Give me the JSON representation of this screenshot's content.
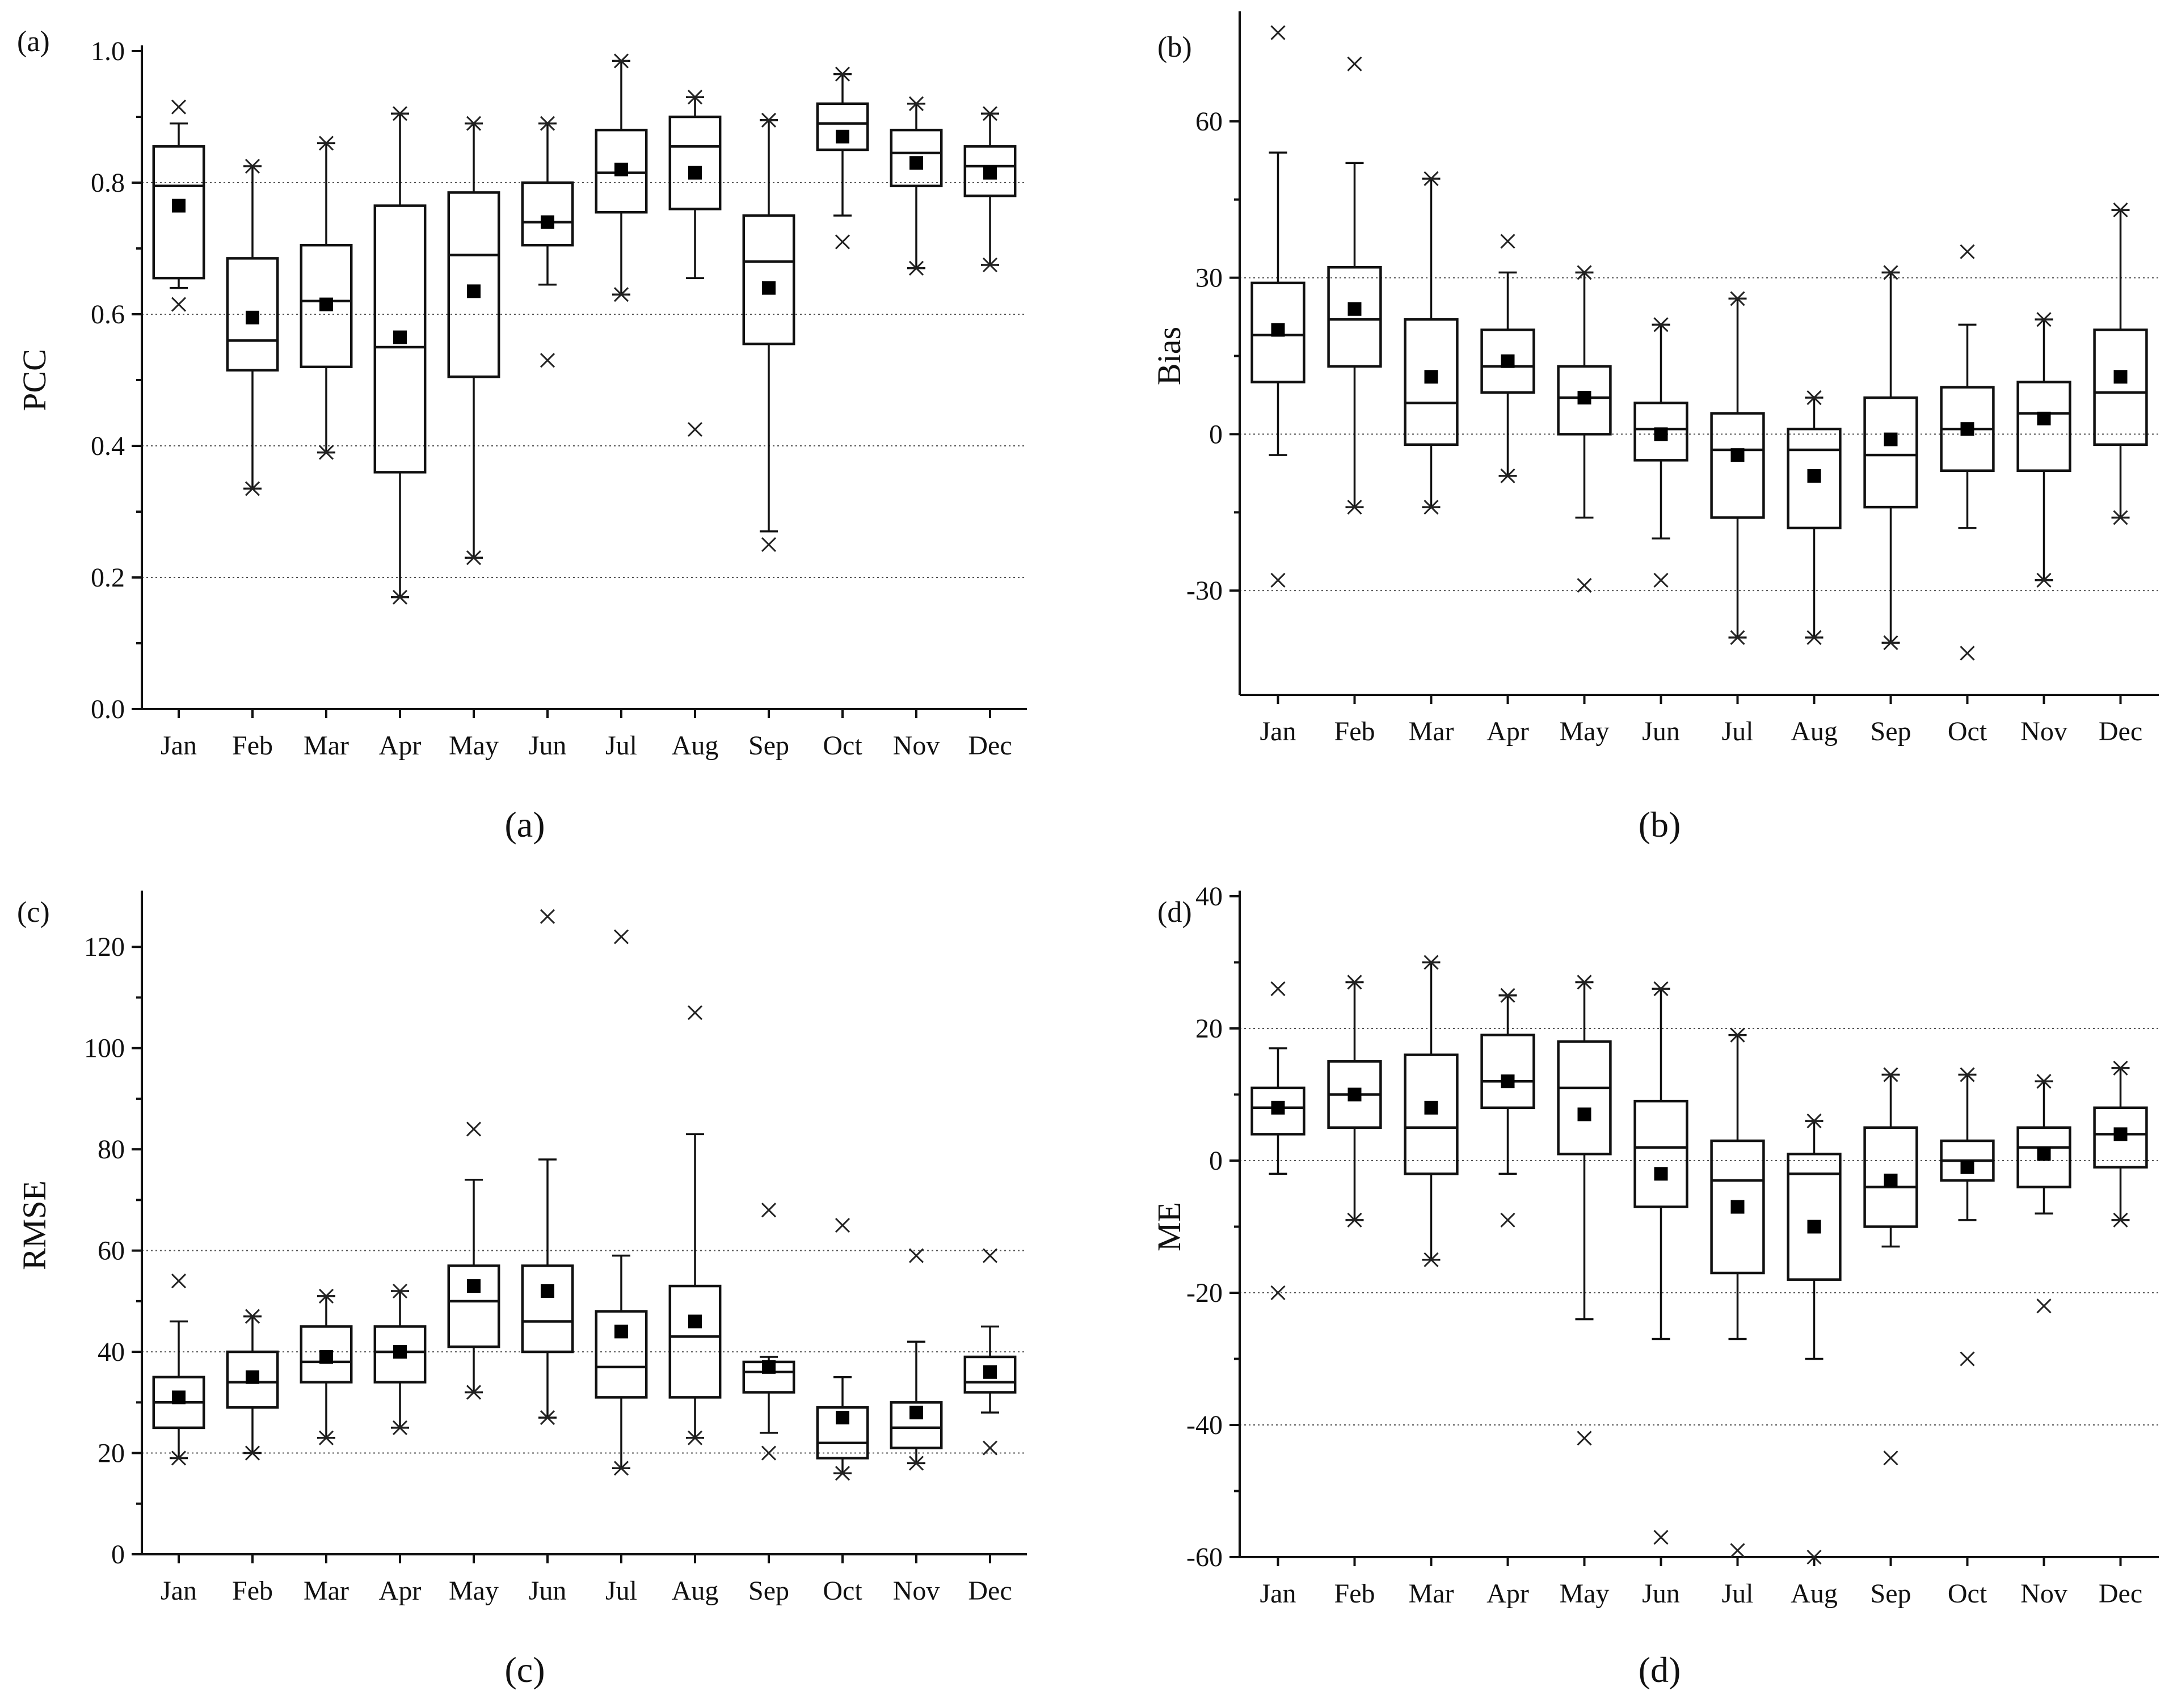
{
  "chart_data": [
    {
      "panel": "(a)",
      "caption": "(a)",
      "type": "box",
      "ylabel": "PCC",
      "xlabel": "",
      "ylim": [
        0,
        1.0
      ],
      "yticks": [
        0.0,
        0.2,
        0.4,
        0.6,
        0.8,
        1.0
      ],
      "ytick_labels": [
        "0.0",
        "0.2",
        "0.4",
        "0.6",
        "0.8",
        "1.0"
      ],
      "gridlines": [
        0.2,
        0.4,
        0.6,
        0.8
      ],
      "categories": [
        "Jan",
        "Feb",
        "Mar",
        "Apr",
        "May",
        "Jun",
        "Jul",
        "Aug",
        "Sep",
        "Oct",
        "Nov",
        "Dec"
      ],
      "boxes": [
        {
          "wlo": 0.64,
          "q1": 0.655,
          "median": 0.795,
          "q3": 0.855,
          "whi": 0.89,
          "mean": 0.765,
          "lo_extreme": 0.615,
          "hi_extreme": 0.915
        },
        {
          "wlo": 0.335,
          "q1": 0.515,
          "median": 0.56,
          "q3": 0.685,
          "whi": 0.825,
          "mean": 0.595,
          "lo_extreme": 0.335,
          "hi_extreme": 0.825
        },
        {
          "wlo": 0.39,
          "q1": 0.52,
          "median": 0.62,
          "q3": 0.705,
          "whi": 0.86,
          "mean": 0.615,
          "lo_extreme": 0.39,
          "hi_extreme": 0.86
        },
        {
          "wlo": 0.17,
          "q1": 0.36,
          "median": 0.55,
          "q3": 0.765,
          "whi": 0.905,
          "mean": 0.565,
          "lo_extreme": 0.17,
          "hi_extreme": 0.905
        },
        {
          "wlo": 0.23,
          "q1": 0.505,
          "median": 0.69,
          "q3": 0.785,
          "whi": 0.89,
          "mean": 0.635,
          "lo_extreme": 0.23,
          "hi_extreme": 0.89
        },
        {
          "wlo": 0.645,
          "q1": 0.705,
          "median": 0.74,
          "q3": 0.8,
          "whi": 0.89,
          "mean": 0.74,
          "lo_extreme": 0.53,
          "hi_extreme": 0.89
        },
        {
          "wlo": 0.63,
          "q1": 0.755,
          "median": 0.815,
          "q3": 0.88,
          "whi": 0.985,
          "mean": 0.82,
          "lo_extreme": 0.63,
          "hi_extreme": 0.985
        },
        {
          "wlo": 0.655,
          "q1": 0.76,
          "median": 0.855,
          "q3": 0.9,
          "whi": 0.93,
          "mean": 0.815,
          "lo_extreme": 0.425,
          "hi_extreme": 0.93
        },
        {
          "wlo": 0.27,
          "q1": 0.555,
          "median": 0.68,
          "q3": 0.75,
          "whi": 0.895,
          "mean": 0.64,
          "lo_extreme": 0.25,
          "hi_extreme": 0.895
        },
        {
          "wlo": 0.75,
          "q1": 0.85,
          "median": 0.89,
          "q3": 0.92,
          "whi": 0.965,
          "mean": 0.87,
          "lo_extreme": 0.71,
          "hi_extreme": 0.965
        },
        {
          "wlo": 0.67,
          "q1": 0.795,
          "median": 0.845,
          "q3": 0.88,
          "whi": 0.92,
          "mean": 0.83,
          "lo_extreme": 0.67,
          "hi_extreme": 0.92
        },
        {
          "wlo": 0.675,
          "q1": 0.78,
          "median": 0.825,
          "q3": 0.855,
          "whi": 0.905,
          "mean": 0.815,
          "lo_extreme": 0.675,
          "hi_extreme": 0.905
        }
      ]
    },
    {
      "panel": "(b)",
      "caption": "(b)",
      "type": "box",
      "ylabel": "Bias",
      "xlabel": "",
      "ylim": [
        -50,
        80
      ],
      "yticks": [
        -30,
        0,
        30,
        60
      ],
      "ytick_labels": [
        "-30",
        "0",
        "30",
        "60"
      ],
      "gridlines": [
        -30,
        0,
        30
      ],
      "categories": [
        "Jan",
        "Feb",
        "Mar",
        "Apr",
        "May",
        "Jun",
        "Jul",
        "Aug",
        "Sep",
        "Oct",
        "Nov",
        "Dec"
      ],
      "boxes": [
        {
          "wlo": -4,
          "q1": 10,
          "median": 19,
          "q3": 29,
          "whi": 54,
          "mean": 20,
          "lo_extreme": -28,
          "hi_extreme": 77
        },
        {
          "wlo": -14,
          "q1": 13,
          "median": 22,
          "q3": 32,
          "whi": 52,
          "mean": 24,
          "lo_extreme": -14,
          "hi_extreme": 71
        },
        {
          "wlo": -14,
          "q1": -2,
          "median": 6,
          "q3": 22,
          "whi": 49,
          "mean": 11,
          "lo_extreme": -14,
          "hi_extreme": 49
        },
        {
          "wlo": -8,
          "q1": 8,
          "median": 13,
          "q3": 20,
          "whi": 31,
          "mean": 14,
          "lo_extreme": -8,
          "hi_extreme": 37
        },
        {
          "wlo": -16,
          "q1": 0,
          "median": 7,
          "q3": 13,
          "whi": 31,
          "mean": 7,
          "lo_extreme": -29,
          "hi_extreme": 31
        },
        {
          "wlo": -20,
          "q1": -5,
          "median": 1,
          "q3": 6,
          "whi": 21,
          "mean": 0,
          "lo_extreme": -28,
          "hi_extreme": 21
        },
        {
          "wlo": -39,
          "q1": -16,
          "median": -3,
          "q3": 4,
          "whi": 26,
          "mean": -4,
          "lo_extreme": -39,
          "hi_extreme": 26
        },
        {
          "wlo": -39,
          "q1": -18,
          "median": -3,
          "q3": 1,
          "whi": 7,
          "mean": -8,
          "lo_extreme": -39,
          "hi_extreme": 7
        },
        {
          "wlo": -40,
          "q1": -14,
          "median": -4,
          "q3": 7,
          "whi": 31,
          "mean": -1,
          "lo_extreme": -40,
          "hi_extreme": 31
        },
        {
          "wlo": -18,
          "q1": -7,
          "median": 1,
          "q3": 9,
          "whi": 21,
          "mean": 1,
          "lo_extreme": -42,
          "hi_extreme": 35
        },
        {
          "wlo": -28,
          "q1": -7,
          "median": 4,
          "q3": 10,
          "whi": 22,
          "mean": 3,
          "lo_extreme": -28,
          "hi_extreme": 22
        },
        {
          "wlo": -16,
          "q1": -2,
          "median": 8,
          "q3": 20,
          "whi": 43,
          "mean": 11,
          "lo_extreme": -16,
          "hi_extreme": 43
        }
      ]
    },
    {
      "panel": "(c)",
      "caption": "(c)",
      "type": "box",
      "ylabel": "RMSE",
      "xlabel": "",
      "ylim": [
        0,
        130
      ],
      "yticks": [
        0,
        20,
        40,
        60,
        80,
        100,
        120
      ],
      "ytick_labels": [
        "0",
        "20",
        "40",
        "60",
        "80",
        "100",
        "120"
      ],
      "gridlines": [
        20,
        40,
        60
      ],
      "categories": [
        "Jan",
        "Feb",
        "Mar",
        "Apr",
        "May",
        "Jun",
        "Jul",
        "Aug",
        "Sep",
        "Oct",
        "Nov",
        "Dec"
      ],
      "boxes": [
        {
          "wlo": 19,
          "q1": 25,
          "median": 30,
          "q3": 35,
          "whi": 46,
          "mean": 31,
          "lo_extreme": 19,
          "hi_extreme": 54
        },
        {
          "wlo": 20,
          "q1": 29,
          "median": 34,
          "q3": 40,
          "whi": 47,
          "mean": 35,
          "lo_extreme": 20,
          "hi_extreme": 47
        },
        {
          "wlo": 23,
          "q1": 34,
          "median": 38,
          "q3": 45,
          "whi": 51,
          "mean": 39,
          "lo_extreme": 23,
          "hi_extreme": 51
        },
        {
          "wlo": 25,
          "q1": 34,
          "median": 40,
          "q3": 45,
          "whi": 52,
          "mean": 40,
          "lo_extreme": 25,
          "hi_extreme": 52
        },
        {
          "wlo": 32,
          "q1": 41,
          "median": 50,
          "q3": 57,
          "whi": 74,
          "mean": 53,
          "lo_extreme": 32,
          "hi_extreme": 84
        },
        {
          "wlo": 27,
          "q1": 40,
          "median": 46,
          "q3": 57,
          "whi": 78,
          "mean": 52,
          "lo_extreme": 27,
          "hi_extreme": 126
        },
        {
          "wlo": 17,
          "q1": 31,
          "median": 37,
          "q3": 48,
          "whi": 59,
          "mean": 44,
          "lo_extreme": 17,
          "hi_extreme": 122
        },
        {
          "wlo": 23,
          "q1": 31,
          "median": 43,
          "q3": 53,
          "whi": 83,
          "mean": 46,
          "lo_extreme": 23,
          "hi_extreme": 107
        },
        {
          "wlo": 24,
          "q1": 32,
          "median": 36,
          "q3": 38,
          "whi": 39,
          "mean": 37,
          "lo_extreme": 20,
          "hi_extreme": 68
        },
        {
          "wlo": 16,
          "q1": 19,
          "median": 22,
          "q3": 29,
          "whi": 35,
          "mean": 27,
          "lo_extreme": 16,
          "hi_extreme": 65
        },
        {
          "wlo": 18,
          "q1": 21,
          "median": 25,
          "q3": 30,
          "whi": 42,
          "mean": 28,
          "lo_extreme": 18,
          "hi_extreme": 59
        },
        {
          "wlo": 28,
          "q1": 32,
          "median": 34,
          "q3": 39,
          "whi": 45,
          "mean": 36,
          "lo_extreme": 21,
          "hi_extreme": 59
        }
      ]
    },
    {
      "panel": "(d)",
      "caption": "(d)",
      "type": "box",
      "ylabel": "ME",
      "xlabel": "",
      "ylim": [
        -60,
        40
      ],
      "yticks": [
        -60,
        -40,
        -20,
        0,
        20,
        40
      ],
      "ytick_labels": [
        "-60",
        "-40",
        "-20",
        "0",
        "20",
        "40"
      ],
      "gridlines": [
        -40,
        -20,
        0,
        20
      ],
      "categories": [
        "Jan",
        "Feb",
        "Mar",
        "Apr",
        "May",
        "Jun",
        "Jul",
        "Aug",
        "Sep",
        "Oct",
        "Nov",
        "Dec"
      ],
      "boxes": [
        {
          "wlo": -2,
          "q1": 4,
          "median": 8,
          "q3": 11,
          "whi": 17,
          "mean": 8,
          "lo_extreme": -20,
          "hi_extreme": 26
        },
        {
          "wlo": -9,
          "q1": 5,
          "median": 10,
          "q3": 15,
          "whi": 27,
          "mean": 10,
          "lo_extreme": -9,
          "hi_extreme": 27
        },
        {
          "wlo": -15,
          "q1": -2,
          "median": 5,
          "q3": 16,
          "whi": 30,
          "mean": 8,
          "lo_extreme": -15,
          "hi_extreme": 30
        },
        {
          "wlo": -2,
          "q1": 8,
          "median": 12,
          "q3": 19,
          "whi": 25,
          "mean": 12,
          "lo_extreme": -9,
          "hi_extreme": 25
        },
        {
          "wlo": -24,
          "q1": 1,
          "median": 11,
          "q3": 18,
          "whi": 27,
          "mean": 7,
          "lo_extreme": -42,
          "hi_extreme": 27
        },
        {
          "wlo": -27,
          "q1": -7,
          "median": 2,
          "q3": 9,
          "whi": 26,
          "mean": -2,
          "lo_extreme": -57,
          "hi_extreme": 26
        },
        {
          "wlo": -27,
          "q1": -17,
          "median": -3,
          "q3": 3,
          "whi": 19,
          "mean": -7,
          "lo_extreme": -59,
          "hi_extreme": 19
        },
        {
          "wlo": -30,
          "q1": -18,
          "median": -2,
          "q3": 1,
          "whi": 6,
          "mean": -10,
          "lo_extreme": -60,
          "hi_extreme": 6
        },
        {
          "wlo": -13,
          "q1": -10,
          "median": -4,
          "q3": 5,
          "whi": 13,
          "mean": -3,
          "lo_extreme": -45,
          "hi_extreme": 13
        },
        {
          "wlo": -9,
          "q1": -3,
          "median": 0,
          "q3": 3,
          "whi": 13,
          "mean": -1,
          "lo_extreme": -30,
          "hi_extreme": 13
        },
        {
          "wlo": -8,
          "q1": -4,
          "median": 2,
          "q3": 5,
          "whi": 12,
          "mean": 1,
          "lo_extreme": -22,
          "hi_extreme": 12
        },
        {
          "wlo": -9,
          "q1": -1,
          "median": 4,
          "q3": 8,
          "whi": 14,
          "mean": 4,
          "lo_extreme": -9,
          "hi_extreme": 14
        }
      ]
    }
  ]
}
